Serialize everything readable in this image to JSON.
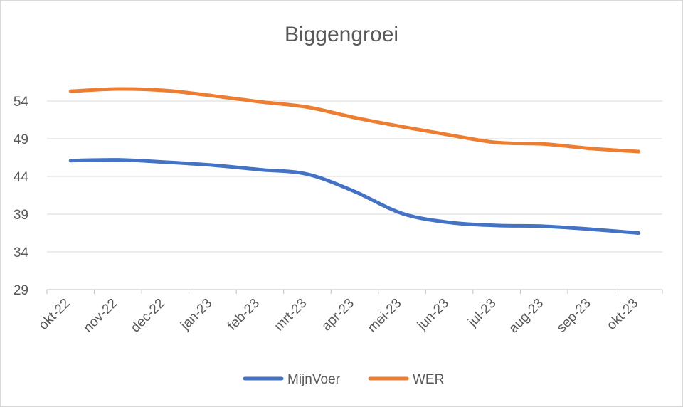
{
  "chart_data": {
    "type": "line",
    "title": "Biggengroei",
    "xlabel": "",
    "ylabel": "",
    "categories": [
      "okt-22",
      "nov-22",
      "dec-22",
      "jan-23",
      "feb-23",
      "mrt-23",
      "apr-23",
      "mei-23",
      "jun-23",
      "jul-23",
      "aug-23",
      "sep-23",
      "okt-23"
    ],
    "yticks": [
      29,
      34,
      39,
      44,
      49,
      54
    ],
    "ylim": [
      29,
      59
    ],
    "grid": true,
    "legend_position": "bottom",
    "series": [
      {
        "name": "MijnVoer",
        "color": "#4472c4",
        "values": [
          46.1,
          46.2,
          45.9,
          45.5,
          44.9,
          44.3,
          42.0,
          39.1,
          37.9,
          37.5,
          37.4,
          37.0,
          36.5
        ]
      },
      {
        "name": "WER",
        "color": "#ed7d31",
        "values": [
          55.3,
          55.6,
          55.4,
          54.7,
          53.9,
          53.2,
          51.8,
          50.6,
          49.5,
          48.5,
          48.3,
          47.7,
          47.3
        ]
      }
    ]
  }
}
